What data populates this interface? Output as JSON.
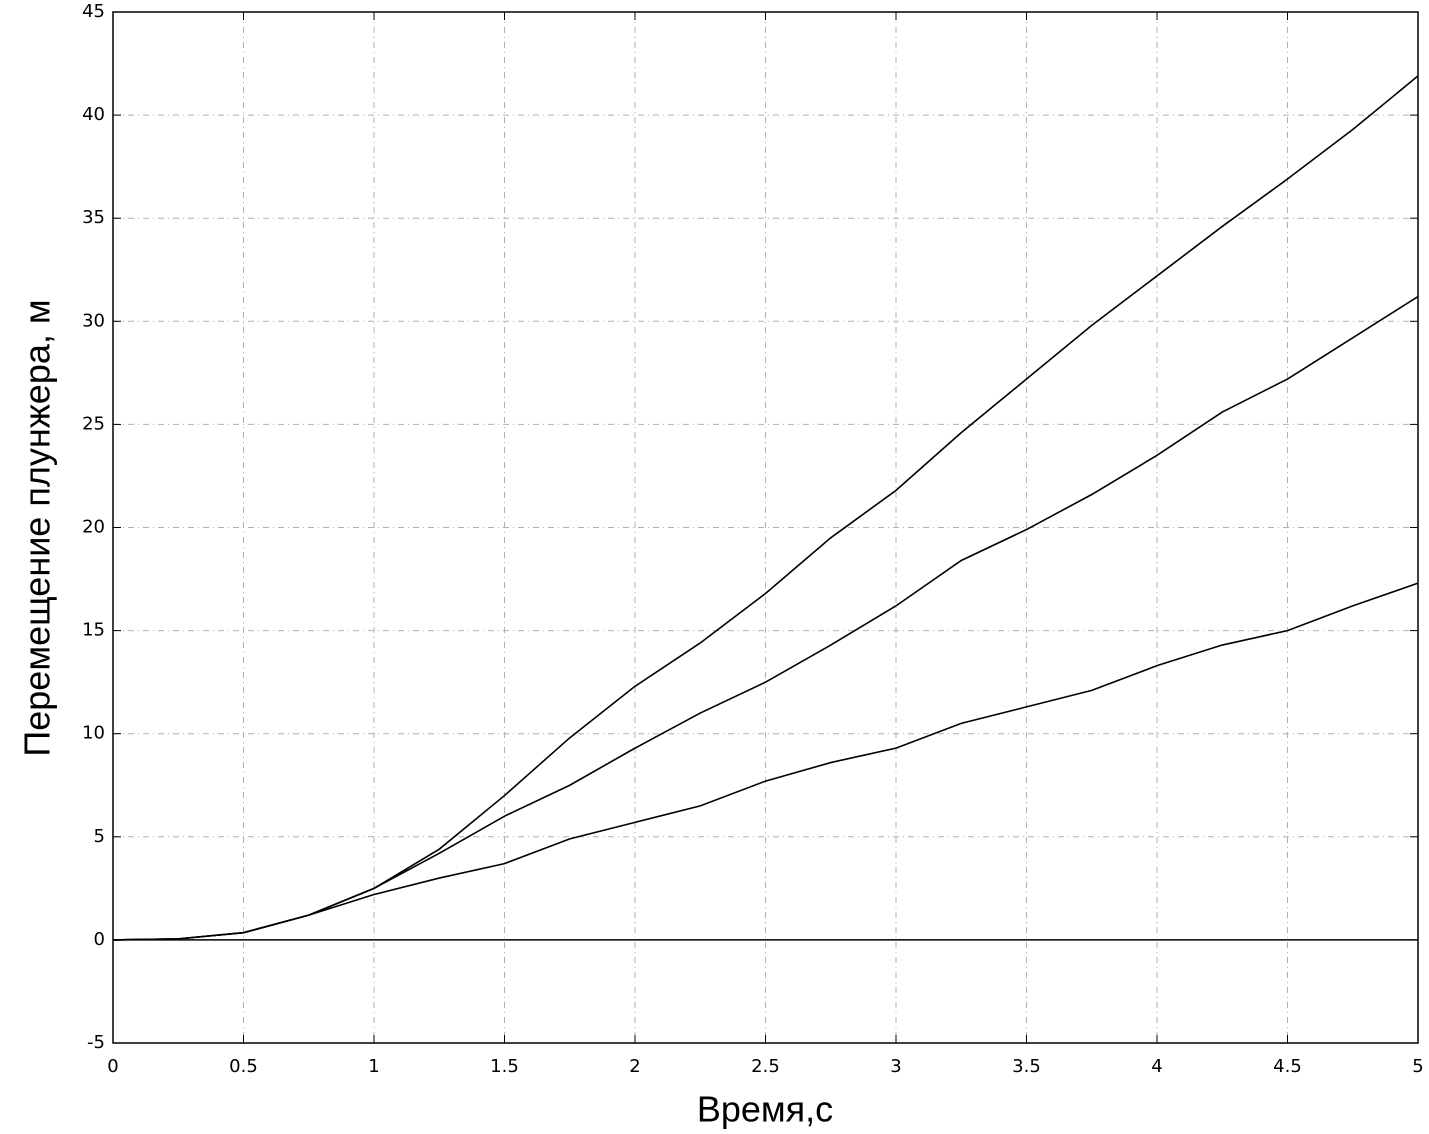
{
  "chart_data": {
    "type": "line",
    "xlabel": "Время,с",
    "ylabel": "Перемещение плунжера, м",
    "x": [
      0,
      0.25,
      0.5,
      0.75,
      1,
      1.25,
      1.5,
      1.75,
      2,
      2.25,
      2.5,
      2.75,
      3,
      3.25,
      3.5,
      3.75,
      4,
      4.25,
      4.5,
      4.75,
      5
    ],
    "series": [
      {
        "color": "#000000",
        "values": [
          0,
          0.05,
          0.35,
          1.2,
          2.5,
          4.4,
          7.0,
          9.8,
          12.3,
          14.4,
          16.8,
          19.5,
          21.8,
          24.6,
          27.2,
          29.8,
          32.2,
          34.6,
          36.9,
          39.3,
          41.9
        ]
      },
      {
        "color": "#000000",
        "values": [
          0,
          0.05,
          0.35,
          1.2,
          2.5,
          4.2,
          6.0,
          7.5,
          9.3,
          11.0,
          12.5,
          14.3,
          16.2,
          18.4,
          19.9,
          21.6,
          23.5,
          25.6,
          27.2,
          29.2,
          31.2
        ]
      },
      {
        "color": "#000000",
        "values": [
          0,
          0.05,
          0.35,
          1.2,
          2.2,
          3.0,
          3.7,
          4.9,
          5.7,
          6.5,
          7.7,
          8.6,
          9.3,
          10.5,
          11.3,
          12.1,
          13.3,
          14.3,
          15.0,
          16.2,
          17.3
        ]
      }
    ],
    "xlim": [
      0,
      5
    ],
    "xticks": [
      0,
      0.5,
      1,
      1.5,
      2,
      2.5,
      3,
      3.5,
      4,
      4.5,
      5
    ],
    "ylim": [
      -5,
      45
    ],
    "yticks": [
      -5,
      0,
      5,
      10,
      15,
      20,
      25,
      30,
      35,
      40,
      45
    ],
    "grid": true
  }
}
